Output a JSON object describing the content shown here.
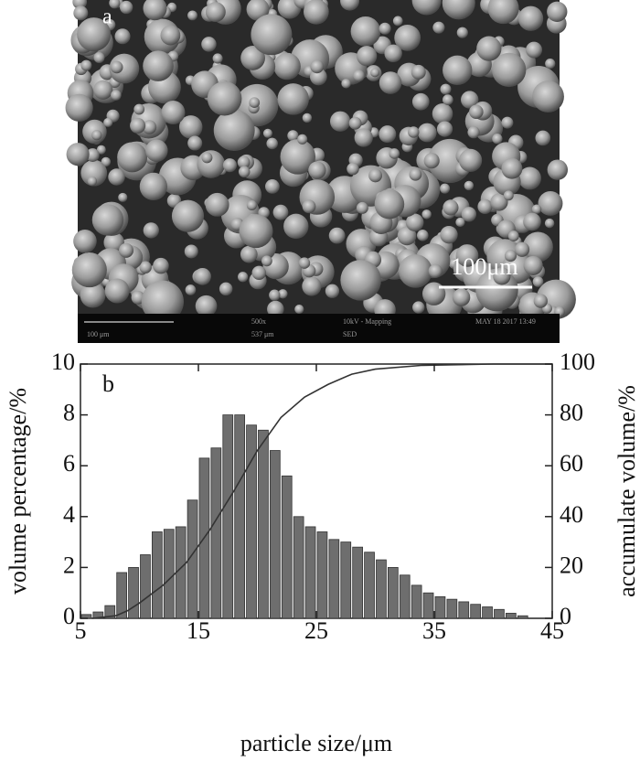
{
  "image": {
    "label": "a",
    "scale_bar": "100μm",
    "info_bar": [
      "100 μm",
      "500x",
      "537 μm",
      "10kV - Mapping",
      "SED",
      "MAY 18 2017 13:49"
    ]
  },
  "chart_data": {
    "type": "histogram",
    "label": "b",
    "xlabel": "particle size/μm",
    "ylabel": "volume percentage/%",
    "y2label": "accumulate volume/%",
    "bins": [
      5,
      6,
      7,
      8,
      9,
      10,
      11,
      12,
      13,
      14,
      15,
      16,
      17,
      18,
      19,
      20,
      21,
      22,
      23,
      24,
      25,
      26,
      27,
      28,
      29,
      30,
      31,
      32,
      33,
      34,
      35,
      36,
      37,
      38,
      39,
      40,
      41,
      42,
      43
    ],
    "values": [
      0.15,
      0.25,
      0.5,
      1.8,
      2.0,
      2.5,
      3.4,
      3.5,
      3.6,
      4.65,
      6.3,
      6.7,
      8.0,
      8.0,
      7.6,
      7.4,
      6.6,
      5.6,
      4.0,
      3.6,
      3.4,
      3.1,
      3.0,
      2.8,
      2.6,
      2.3,
      2.0,
      1.7,
      1.3,
      1.0,
      0.85,
      0.75,
      0.65,
      0.55,
      0.45,
      0.35,
      0.2,
      0.1
    ],
    "color": "#6e6e6e",
    "cumulative": {
      "axis": "y2",
      "color": "#333333",
      "x": [
        6,
        8,
        9,
        10,
        12,
        14,
        16,
        18,
        20,
        22,
        24,
        26,
        28,
        30,
        34,
        40,
        45
      ],
      "values": [
        0,
        1,
        3,
        6,
        13,
        22,
        35,
        50,
        66,
        79,
        87,
        92,
        96,
        98,
        99.5,
        100,
        100
      ]
    },
    "xlim": [
      5,
      45
    ],
    "xticks": [
      5,
      15,
      25,
      35,
      45
    ],
    "ylim": [
      0,
      10
    ],
    "yticks": [
      0,
      2,
      4,
      6,
      8,
      10
    ],
    "y2lim": [
      0,
      100
    ],
    "y2ticks": [
      0,
      20,
      40,
      60,
      80,
      100
    ],
    "grid": false
  }
}
